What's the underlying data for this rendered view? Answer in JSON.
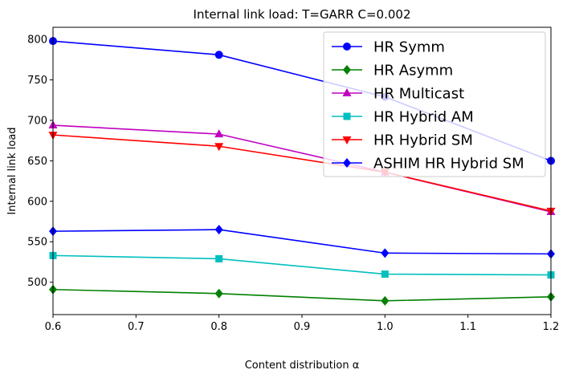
{
  "chart_data": {
    "type": "line",
    "title": "Internal link load: T=GARR C=0.002",
    "xlabel": "Content distribution α",
    "ylabel": "Internal link load",
    "xlim": [
      0.6,
      1.2
    ],
    "ylim": [
      460,
      815
    ],
    "xticks": [
      "0.6",
      "0.7",
      "0.8",
      "0.9",
      "1.0",
      "1.1",
      "1.2"
    ],
    "yticks": [
      "500",
      "550",
      "600",
      "650",
      "700",
      "750",
      "800"
    ],
    "x": [
      0.6,
      0.8,
      1.0,
      1.2
    ],
    "legend_position": "top-right",
    "series": [
      {
        "name": "HR Symm",
        "color": "#0000ff",
        "marker": "circle",
        "values": [
          798,
          781,
          729,
          650
        ]
      },
      {
        "name": "HR Asymm",
        "color": "#008000",
        "marker": "diamond",
        "values": [
          491,
          486,
          477,
          482
        ]
      },
      {
        "name": "HR Multicast",
        "color": "#bf00bf",
        "marker": "triangle-up",
        "values": [
          694,
          683,
          636,
          587
        ]
      },
      {
        "name": "HR Hybrid AM",
        "color": "#00bfbf",
        "marker": "square",
        "values": [
          533,
          529,
          510,
          509
        ]
      },
      {
        "name": "HR Hybrid SM",
        "color": "#ff0000",
        "marker": "triangle-down",
        "values": [
          682,
          668,
          636,
          588
        ]
      },
      {
        "name": "ASHIM HR Hybrid SM",
        "color": "#0000ff",
        "marker": "diamond",
        "values": [
          563,
          565,
          536,
          535
        ]
      }
    ]
  }
}
